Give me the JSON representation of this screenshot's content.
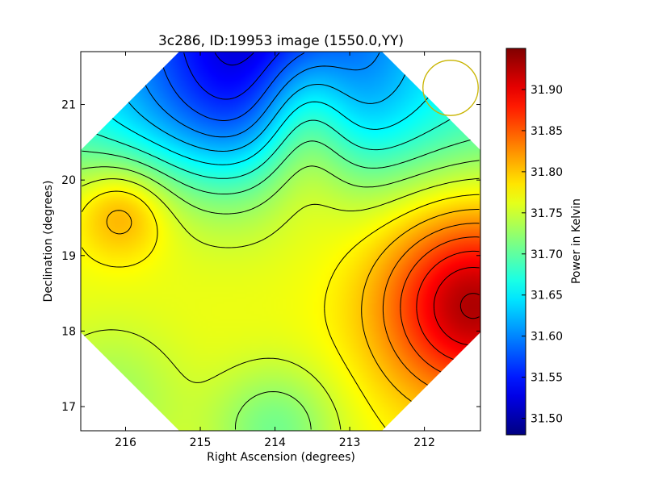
{
  "chart_data": {
    "type": "heatmap",
    "title": "3c286, ID:19953 image (1550.0,YY)",
    "xlabel": "Right Ascension (degrees)",
    "ylabel": "Declination (degrees)",
    "colorbar_label": "Power in Kelvin",
    "x_axis": {
      "range": [
        216.6,
        211.25
      ],
      "reversed": true,
      "ticks": [
        216,
        215,
        214,
        213,
        212
      ],
      "tick_labels": [
        "216",
        "215",
        "214",
        "213",
        "212"
      ]
    },
    "y_axis": {
      "range": [
        16.68,
        21.7
      ],
      "ticks": [
        17,
        18,
        19,
        20,
        21
      ],
      "tick_labels": [
        "17",
        "18",
        "19",
        "20",
        "21"
      ]
    },
    "colorbar": {
      "range": [
        31.48,
        31.95
      ],
      "colormap": "jet",
      "ticks": [
        31.5,
        31.55,
        31.6,
        31.65,
        31.7,
        31.75,
        31.8,
        31.85,
        31.9
      ],
      "tick_labels": [
        "31.50",
        "31.55",
        "31.60",
        "31.65",
        "31.70",
        "31.75",
        "31.80",
        "31.85",
        "31.90"
      ]
    },
    "field_of_view": "octagon",
    "contours": {
      "color": "#000000",
      "count": 18
    },
    "features": [
      {
        "kind": "minimum",
        "ra": 214.2,
        "dec": 21.55,
        "value": 31.48
      },
      {
        "kind": "maximum",
        "ra": 211.35,
        "dec": 18.35,
        "value": 31.94
      },
      {
        "kind": "local_maximum",
        "ra": 214.6,
        "dec": 18.75,
        "value": 31.82
      },
      {
        "kind": "local_maximum",
        "ra": 216.05,
        "dec": 19.6,
        "value": 31.79
      }
    ],
    "marker": {
      "kind": "circle",
      "ra": 211.65,
      "dec": 21.22,
      "radius_deg": 0.37,
      "color": "#c8b400"
    }
  }
}
